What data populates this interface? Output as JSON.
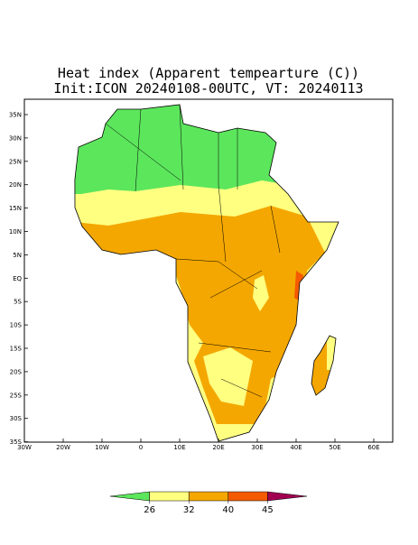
{
  "header": {
    "title": "Heat index (Apparent tempearture (C))",
    "subtitle": "Init:ICON 20240108-00UTC, VT: 20240113"
  },
  "map": {
    "lat_labels": [
      "35N",
      "30N",
      "25N",
      "20N",
      "15N",
      "10N",
      "5N",
      "EQ",
      "5S",
      "10S",
      "15S",
      "20S",
      "25S",
      "30S",
      "35S"
    ],
    "lon_labels": [
      "30W",
      "20W",
      "10W",
      "0",
      "10E",
      "20E",
      "30E",
      "40E",
      "50E",
      "60E"
    ]
  },
  "colorbar": {
    "ticks": [
      26,
      32,
      40,
      45
    ],
    "colors": [
      "#5ce65c",
      "#ffff80",
      "#f4a700",
      "#f45a00",
      "#a00050"
    ]
  }
}
